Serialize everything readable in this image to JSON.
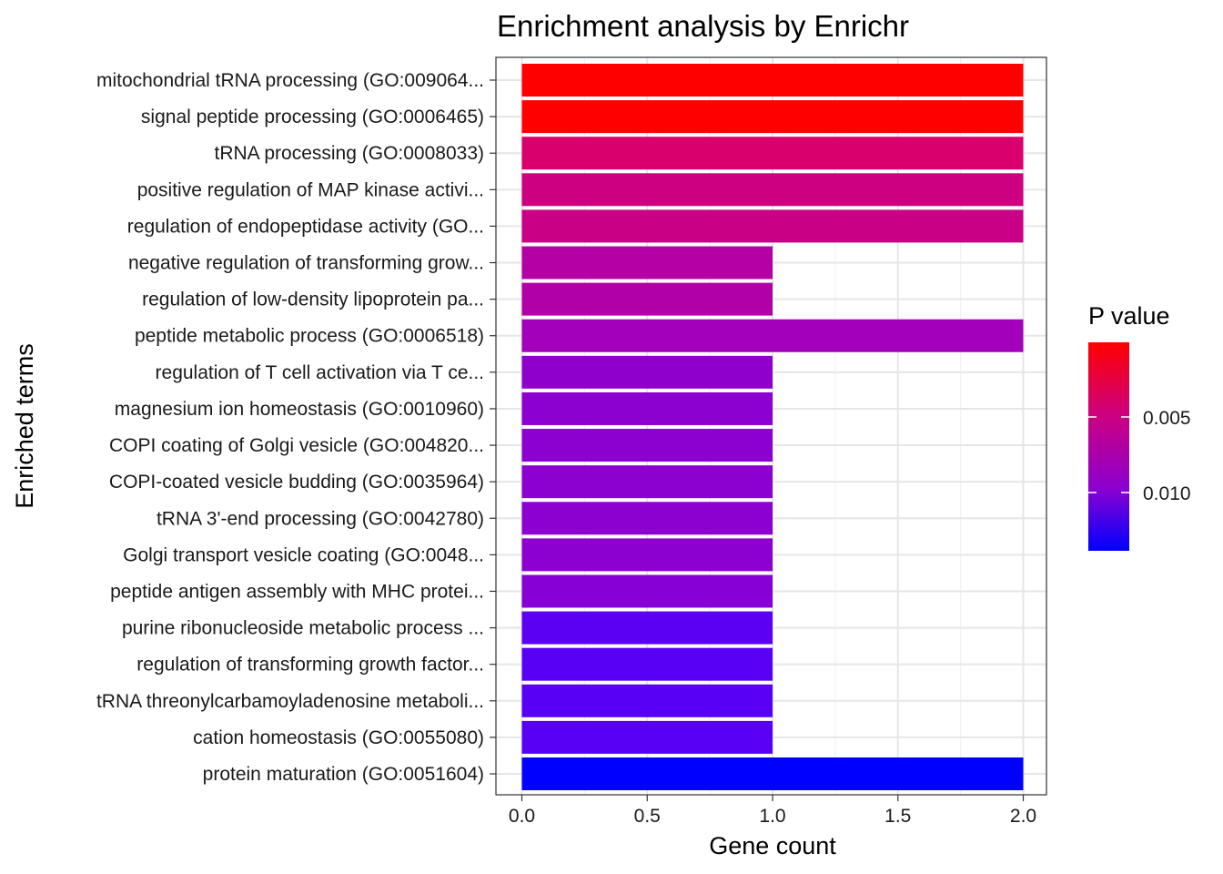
{
  "chart_data": {
    "type": "bar",
    "orientation": "horizontal",
    "title": "Enrichment analysis by Enrichr",
    "xlabel": "Gene count",
    "ylabel": "Enriched terms",
    "xlim": [
      0,
      2
    ],
    "x_ticks": [
      "0.0",
      "0.5",
      "1.0",
      "1.5",
      "2.0"
    ],
    "grid": true,
    "categories": [
      "mitochondrial tRNA processing (GO:009064...",
      "signal peptide processing (GO:0006465)",
      "tRNA processing (GO:0008033)",
      "positive regulation of MAP kinase activi...",
      "regulation of endopeptidase activity (GO...",
      "negative regulation of transforming grow...",
      "regulation of low-density lipoprotein pa...",
      "peptide metabolic process (GO:0006518)",
      "regulation of T cell activation via T ce...",
      "magnesium ion homeostasis (GO:0010960)",
      "COPI coating of Golgi vesicle (GO:004820...",
      "COPI-coated vesicle budding (GO:0035964)",
      "tRNA 3'-end processing (GO:0042780)",
      "Golgi transport vesicle coating (GO:0048...",
      "peptide antigen assembly with MHC protei...",
      "purine ribonucleoside metabolic process ...",
      "regulation of transforming growth factor...",
      "tRNA threonylcarbamoyladenosine metaboli...",
      "cation homeostasis (GO:0055080)",
      "protein maturation (GO:0051604)"
    ],
    "values": [
      2,
      2,
      2,
      2,
      2,
      1,
      1,
      2,
      1,
      1,
      1,
      1,
      1,
      1,
      1,
      1,
      1,
      1,
      1,
      2
    ],
    "bar_colors": [
      "#ff0000",
      "#ff0000",
      "#d9006e",
      "#cc0080",
      "#c90086",
      "#b400a4",
      "#b200a8",
      "#a200ba",
      "#8f00cd",
      "#8c00d0",
      "#8c00d0",
      "#8c00d0",
      "#8c00d0",
      "#8c00d0",
      "#8700d5",
      "#5b00f3",
      "#5800f5",
      "#5800f5",
      "#5800f5",
      "#0000ff"
    ],
    "legend": {
      "title": "P value",
      "position": "right",
      "gradient_colors": [
        "#ff0000",
        "#cc0080",
        "#8c00d0",
        "#0000ff"
      ],
      "labels": [
        "0.005",
        "0.010"
      ]
    }
  }
}
